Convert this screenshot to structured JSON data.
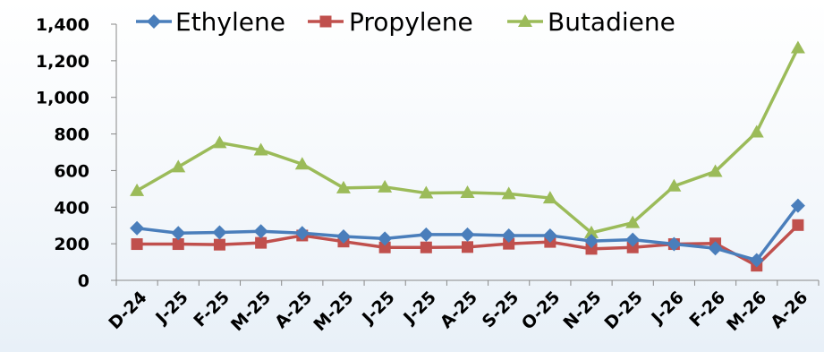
{
  "chart_data": {
    "type": "line",
    "categories": [
      "D-24",
      "J-25",
      "F-25",
      "M-25",
      "A-25",
      "M-25",
      "J-25",
      "J-25",
      "A-25",
      "S-25",
      "O-25",
      "N-25",
      "D-25",
      "J-26",
      "F-26",
      "M-26",
      "A-26"
    ],
    "series": [
      {
        "name": "Ethylene",
        "color": "#4a7ebb",
        "marker": "diamond",
        "values": [
          285,
          258,
          262,
          268,
          258,
          240,
          228,
          250,
          250,
          245,
          245,
          215,
          222,
          198,
          175,
          110,
          408
        ]
      },
      {
        "name": "Propylene",
        "color": "#c0504d",
        "marker": "square",
        "values": [
          198,
          198,
          195,
          205,
          245,
          212,
          180,
          180,
          182,
          200,
          210,
          172,
          180,
          198,
          202,
          80,
          302
        ]
      },
      {
        "name": "Butadiene",
        "color": "#9bbb59",
        "marker": "triangle",
        "values": [
          490,
          620,
          752,
          712,
          635,
          505,
          510,
          477,
          480,
          473,
          450,
          260,
          315,
          515,
          595,
          810,
          1270
        ]
      }
    ],
    "ylim": [
      0,
      1400
    ],
    "yticks": [
      0,
      200,
      400,
      600,
      800,
      1000,
      1200,
      1400
    ],
    "ytick_labels": [
      "0",
      "200",
      "400",
      "600",
      "800",
      "1,000",
      "1,200",
      "1,400"
    ],
    "grid": false,
    "legend": "top",
    "title": "",
    "xlabel": "",
    "ylabel": ""
  }
}
